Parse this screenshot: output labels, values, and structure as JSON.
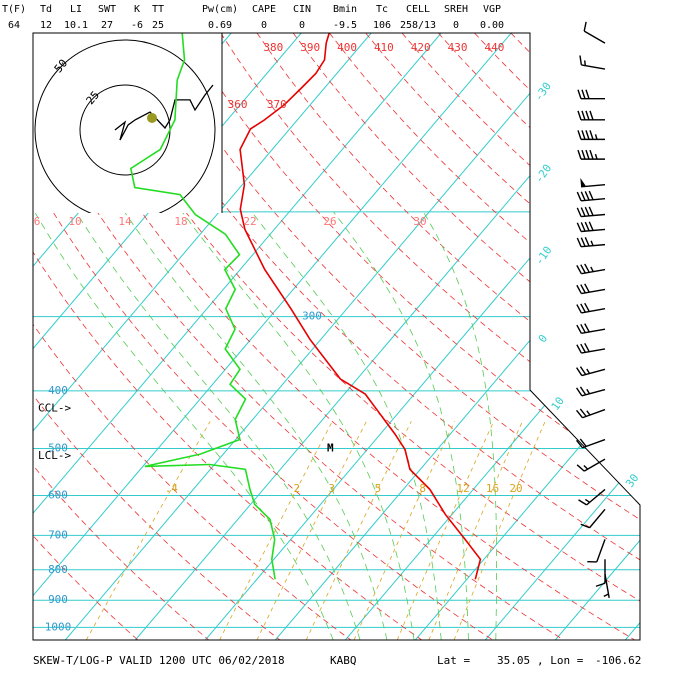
{
  "chart_data": {
    "type": "skew-t",
    "indices": [
      {
        "label": "T(F)",
        "value": 64
      },
      {
        "label": "Td",
        "value": 12
      },
      {
        "label": "LI",
        "value": 10.1
      },
      {
        "label": "SWT",
        "value": 27
      },
      {
        "label": "K",
        "value": -6
      },
      {
        "label": "TT",
        "value": 25
      },
      {
        "label": "Pw(cm)",
        "value": 0.69
      },
      {
        "label": "CAPE",
        "value": 0
      },
      {
        "label": "CIN",
        "value": 0
      },
      {
        "label": "Bmin",
        "value": -9.5
      },
      {
        "label": "Tc",
        "value": 106
      },
      {
        "label": "CELL",
        "value": "258/13"
      },
      {
        "label": "SREH",
        "value": 0
      },
      {
        "label": "VGP",
        "value": {
          "value": 0,
          "label": "0.00"
        }
      }
    ],
    "ylim": [
      100,
      1050
    ],
    "yticks": [
      300,
      400,
      500,
      600,
      700,
      800,
      900,
      1000
    ],
    "isobars_unlabeled": [
      200
    ],
    "isotherms": [
      -30,
      -20,
      -10,
      0,
      10,
      30
    ],
    "isotherms_unlabeled": [
      -110,
      -100,
      -90,
      -80,
      -70,
      -60,
      -50,
      -40,
      20,
      40,
      50
    ],
    "dry_adiabats": [
      360,
      370,
      380,
      390,
      400,
      410,
      420,
      430,
      440
    ],
    "dry_adiabats_unlabeled": [
      250,
      260,
      270,
      280,
      290,
      300,
      310,
      320,
      330,
      340,
      350,
      450,
      460,
      470
    ],
    "moist_adiabats": [
      6,
      10,
      14,
      18,
      22,
      26,
      30
    ],
    "mixing_ratios": [
      {
        "value": 0.4,
        "label": ".4"
      },
      2,
      3,
      5,
      8,
      12,
      16,
      20
    ],
    "levels": [
      {
        "label": "CCL->",
        "pressure": 428
      },
      {
        "label": "LCL->",
        "pressure": 515
      }
    ],
    "marker": {
      "label": "M",
      "pressure": 500,
      "temperature": -15.4
    },
    "series": [
      {
        "color": "#e60000",
        "pressure": [
          830,
          768,
          711,
          645,
          586,
          542,
          502,
          473,
          438,
          405,
          382,
          328,
          291,
          250,
          214,
          198,
          180,
          157,
          145,
          140,
          132,
          124,
          117,
          111,
          104,
          100
        ],
        "values": [
          21.2,
          19.5,
          14.9,
          9.0,
          3.8,
          -1.5,
          -4.6,
          -7.9,
          -12.4,
          -17.0,
          -22.4,
          -31.5,
          -38.0,
          -46.5,
          -54.2,
          -57.3,
          -59.7,
          -64.6,
          -65.6,
          -64.7,
          -63.7,
          -63.3,
          -63.0,
          -63.4,
          -65.2,
          -66.0
        ]
      },
      {
        "color": "#22dd22",
        "pressure": [
          830,
          768,
          711,
          658,
          621,
          586,
          542,
          532,
          536,
          511,
          483,
          447,
          413,
          390,
          368,
          340,
          315,
          291,
          270,
          250,
          236,
          218,
          202,
          187,
          182,
          169,
          157,
          140,
          120,
          111,
          100
        ],
        "values": [
          -7.4,
          -10.3,
          -12.3,
          -15.4,
          -19.4,
          -21.9,
          -25.0,
          -30.7,
          -39.7,
          -33.3,
          -29.4,
          -32.5,
          -33.5,
          -37.5,
          -37.9,
          -42.5,
          -43.5,
          -47.3,
          -48.3,
          -52.2,
          -51.9,
          -56.4,
          -63.1,
          -67.7,
          -75.0,
          -77.9,
          -76.0,
          -77.5,
          -82.0,
          -83.4,
          -87.0
        ]
      }
    ],
    "winds": {
      "pressure": [
        104,
        115,
        129,
        140,
        151,
        163,
        180,
        190,
        202,
        214,
        227,
        250,
        270,
        291,
        315,
        340,
        368,
        398,
        430,
        483,
        521,
        586,
        633,
        711,
        768,
        814
      ],
      "direction": [
        300,
        280,
        270,
        270,
        270,
        270,
        265,
        265,
        265,
        265,
        265,
        260,
        260,
        260,
        260,
        260,
        255,
        255,
        250,
        250,
        240,
        230,
        220,
        200,
        180,
        170
      ],
      "speed": [
        10,
        15,
        30,
        40,
        45,
        45,
        50,
        40,
        40,
        40,
        35,
        35,
        30,
        30,
        30,
        30,
        25,
        25,
        25,
        20,
        15,
        15,
        10,
        10,
        10,
        5
      ]
    },
    "hodograph": {
      "rings": [
        25,
        50
      ],
      "u": [
        -5.6,
        0,
        -2.8,
        1.7,
        5.6,
        13.9,
        22.2,
        25,
        27.8,
        36.1,
        38.9,
        44.4,
        48.9
      ],
      "v": [
        0,
        4.4,
        -5.6,
        2.8,
        5.6,
        10,
        1.1,
        5.6,
        16.7,
        16.7,
        11.1,
        19.4,
        25
      ],
      "storm_motion": {
        "u": 15,
        "v": 6.7
      }
    },
    "footer": {
      "title": "SKEW-T/LOG-P VALID 1200 UTC 06/02/2018",
      "station": "KABQ",
      "lat_label": "Lat =",
      "lat": 35.05,
      "lon_label": ", Lon =",
      "lon": -106.62
    }
  }
}
